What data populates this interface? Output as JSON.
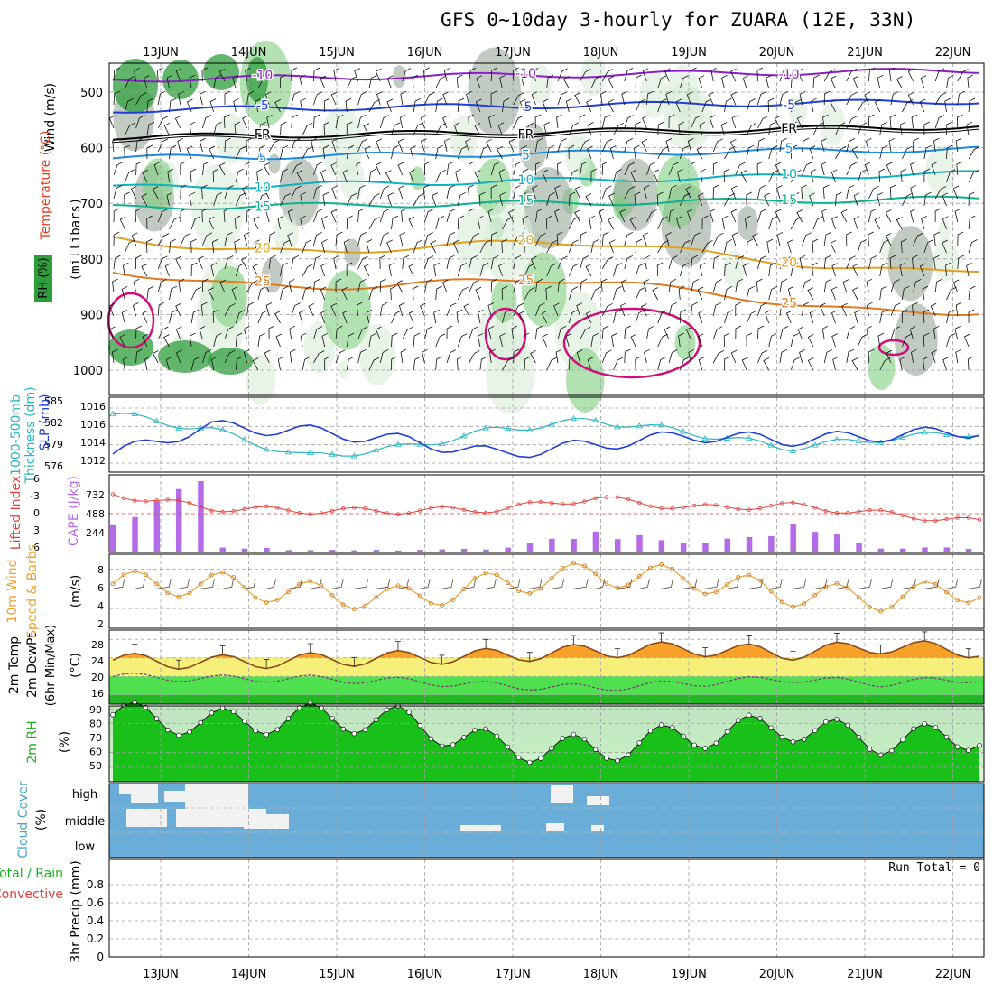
{
  "title": "GFS 0~10day 3-hourly for ZUARA (12E, 33N)",
  "dates": [
    "13JUN",
    "14JUN",
    "15JUN",
    "16JUN",
    "17JUN",
    "18JUN",
    "19JUN",
    "20JUN",
    "21JUN",
    "22JUN"
  ],
  "colors": {
    "frame": "#000000",
    "grid": "#a0a0a0",
    "rh_dark": "#2e9e3a",
    "rh_mid": "#7fcf7f",
    "rh_light": "#d9ecd9",
    "rh_gray": "#9aa89a",
    "thickness": "#29b5c5",
    "slp": "#1f3fd6",
    "lifted": "#e0403a",
    "cape": "#b46be8",
    "wind": "#f0a030",
    "temp_fill": "#f7a12b",
    "temp_line": "#8a4a1a",
    "cool_fill": "#f6f07a",
    "dew_fill": "#4fe04f",
    "rh_fill": "#19c019",
    "cloud": "#69add8",
    "cloud_white": "#f2f2f2"
  },
  "panels": {
    "upper": {
      "yaxis_label": "(millibars)",
      "label_wind": "Wind (m/s)",
      "label_temp": "Temperature (°C)",
      "label_rh": "RH (%)",
      "levels": [
        500,
        600,
        700,
        800,
        900,
        1000
      ],
      "isotherms": [
        {
          "label": "-10",
          "color": "#8a1ec8"
        },
        {
          "label": "-5",
          "color": "#1f3fd6"
        },
        {
          "label": "FR",
          "color": "#000000"
        },
        {
          "label": "5",
          "color": "#1c8ae0"
        },
        {
          "label": "10",
          "color": "#10b0c0"
        },
        {
          "label": "15",
          "color": "#10b090"
        },
        {
          "label": "20",
          "color": "#e0a020"
        },
        {
          "label": "25",
          "color": "#e07a20"
        }
      ]
    },
    "thickness": {
      "label_a": "1000-500mb",
      "label_b": "Thickness (dm)",
      "label_c": "SLP (mb)",
      "left_ticks": [
        "585",
        "582",
        "579",
        "576"
      ],
      "right_ticks": [
        "1016",
        "1016",
        "1014",
        "1012"
      ]
    },
    "lifted": {
      "label_a": "Lifted Index",
      "label_b": "CAPE (J/kg)",
      "left_ticks": [
        "-6",
        "-3",
        "0",
        "3",
        "6"
      ],
      "right_ticks": [
        "732",
        "488",
        "244"
      ]
    },
    "wind": {
      "label_a": "10m Wind",
      "label_b": "Speed & Barbs",
      "label_c": "(m/s)",
      "ticks": [
        "8",
        "6",
        "4",
        "2"
      ]
    },
    "temp": {
      "label_a": "2m Temp",
      "label_b": "2m DewPt",
      "label_c": "(6hr Min/Max)",
      "label_d": "(°C)",
      "ticks": [
        "28",
        "24",
        "20",
        "16"
      ]
    },
    "rh": {
      "label_a": "2m RH",
      "label_b": "(%)",
      "ticks": [
        "90",
        "80",
        "70",
        "60",
        "50"
      ]
    },
    "cloud": {
      "label_a": "Cloud Cover",
      "label_b": "(%)",
      "rows": [
        "high",
        "middle",
        "low"
      ]
    },
    "precip": {
      "label_a": "Total / Rain",
      "label_b": "Convective",
      "label_c": "3hr Precip (mm)",
      "ticks": [
        "0.8",
        "0.6",
        "0.4",
        "0.2",
        "0"
      ],
      "run_total": "Run Total = 0"
    }
  },
  "chart_data": [
    {
      "type": "line",
      "title": "1000-500mb Thickness (dm) / SLP (mb)",
      "x": [
        "13JUN",
        "14JUN",
        "15JUN",
        "16JUN",
        "17JUN",
        "18JUN",
        "19JUN",
        "20JUN",
        "21JUN",
        "22JUN"
      ],
      "series": [
        {
          "name": "1000-500mb Thickness (dm)",
          "values": [
            584.0,
            581.5,
            577.0,
            578.5,
            581.5,
            583.0,
            581.0,
            578.5,
            580.0,
            581.0
          ]
        },
        {
          "name": "SLP (mb)",
          "values": [
            1012.5,
            1015.5,
            1015.0,
            1014.0,
            1012.5,
            1013.5,
            1014.5,
            1014.0,
            1014.5,
            1015.0
          ]
        }
      ],
      "ylim": [
        576,
        585
      ]
    },
    {
      "type": "bar",
      "title": "Lifted Index / CAPE (J/kg)",
      "x": [
        "13JUN",
        "14JUN",
        "15JUN",
        "16JUN",
        "17JUN",
        "18JUN",
        "19JUN",
        "20JUN",
        "21JUN",
        "22JUN"
      ],
      "series": [
        {
          "name": "CAPE (J/kg)",
          "values": [
            950,
            80,
            20,
            20,
            40,
            300,
            150,
            350,
            60,
            60
          ]
        },
        {
          "name": "Lifted Index",
          "values": [
            -3.5,
            -1,
            -0.5,
            -0.5,
            -0.8,
            -2.8,
            -1,
            -1.5,
            0,
            1.5
          ]
        }
      ]
    },
    {
      "type": "line",
      "title": "10m Wind Speed (m/s)",
      "x": [
        "13JUN",
        "14JUN",
        "15JUN",
        "16JUN",
        "17JUN",
        "18JUN",
        "19JUN",
        "20JUN",
        "21JUN",
        "22JUN"
      ],
      "values": [
        6.5,
        6.5,
        5.5,
        5.0,
        6.5,
        7.5,
        7.0,
        5.5,
        5.0,
        6.0
      ],
      "ylim": [
        2,
        9
      ]
    },
    {
      "type": "area",
      "title": "2m Temp / 2m DewPt (°C)",
      "x": [
        "13JUN",
        "14JUN",
        "15JUN",
        "16JUN",
        "17JUN",
        "18JUN",
        "19JUN",
        "20JUN",
        "21JUN",
        "22JUN"
      ],
      "series": [
        {
          "name": "2m Temp",
          "values": [
            23.5,
            23.0,
            23.5,
            24.0,
            24.5,
            25.5,
            26.0,
            25.0,
            26.5,
            25.5
          ]
        },
        {
          "name": "2m DewPt",
          "values": [
            20.0,
            19.5,
            19.5,
            19.0,
            18.0,
            17.5,
            18.5,
            19.5,
            18.5,
            19.5
          ]
        }
      ],
      "ylim": [
        14,
        30
      ]
    },
    {
      "type": "area",
      "title": "2m RH (%)",
      "x": [
        "13JUN",
        "14JUN",
        "15JUN",
        "16JUN",
        "17JUN",
        "18JUN",
        "19JUN",
        "20JUN",
        "21JUN",
        "22JUN"
      ],
      "values": [
        86,
        80,
        84,
        82,
        64,
        62,
        72,
        78,
        68,
        72
      ],
      "ylim": [
        40,
        90
      ]
    },
    {
      "type": "area",
      "title": "3hr Precip (mm)",
      "x": [
        "13JUN",
        "14JUN",
        "15JUN",
        "16JUN",
        "17JUN",
        "18JUN",
        "19JUN",
        "20JUN",
        "21JUN",
        "22JUN"
      ],
      "values": [
        0,
        0,
        0,
        0,
        0,
        0,
        0,
        0,
        0,
        0
      ],
      "ylim": [
        0,
        1
      ]
    }
  ]
}
